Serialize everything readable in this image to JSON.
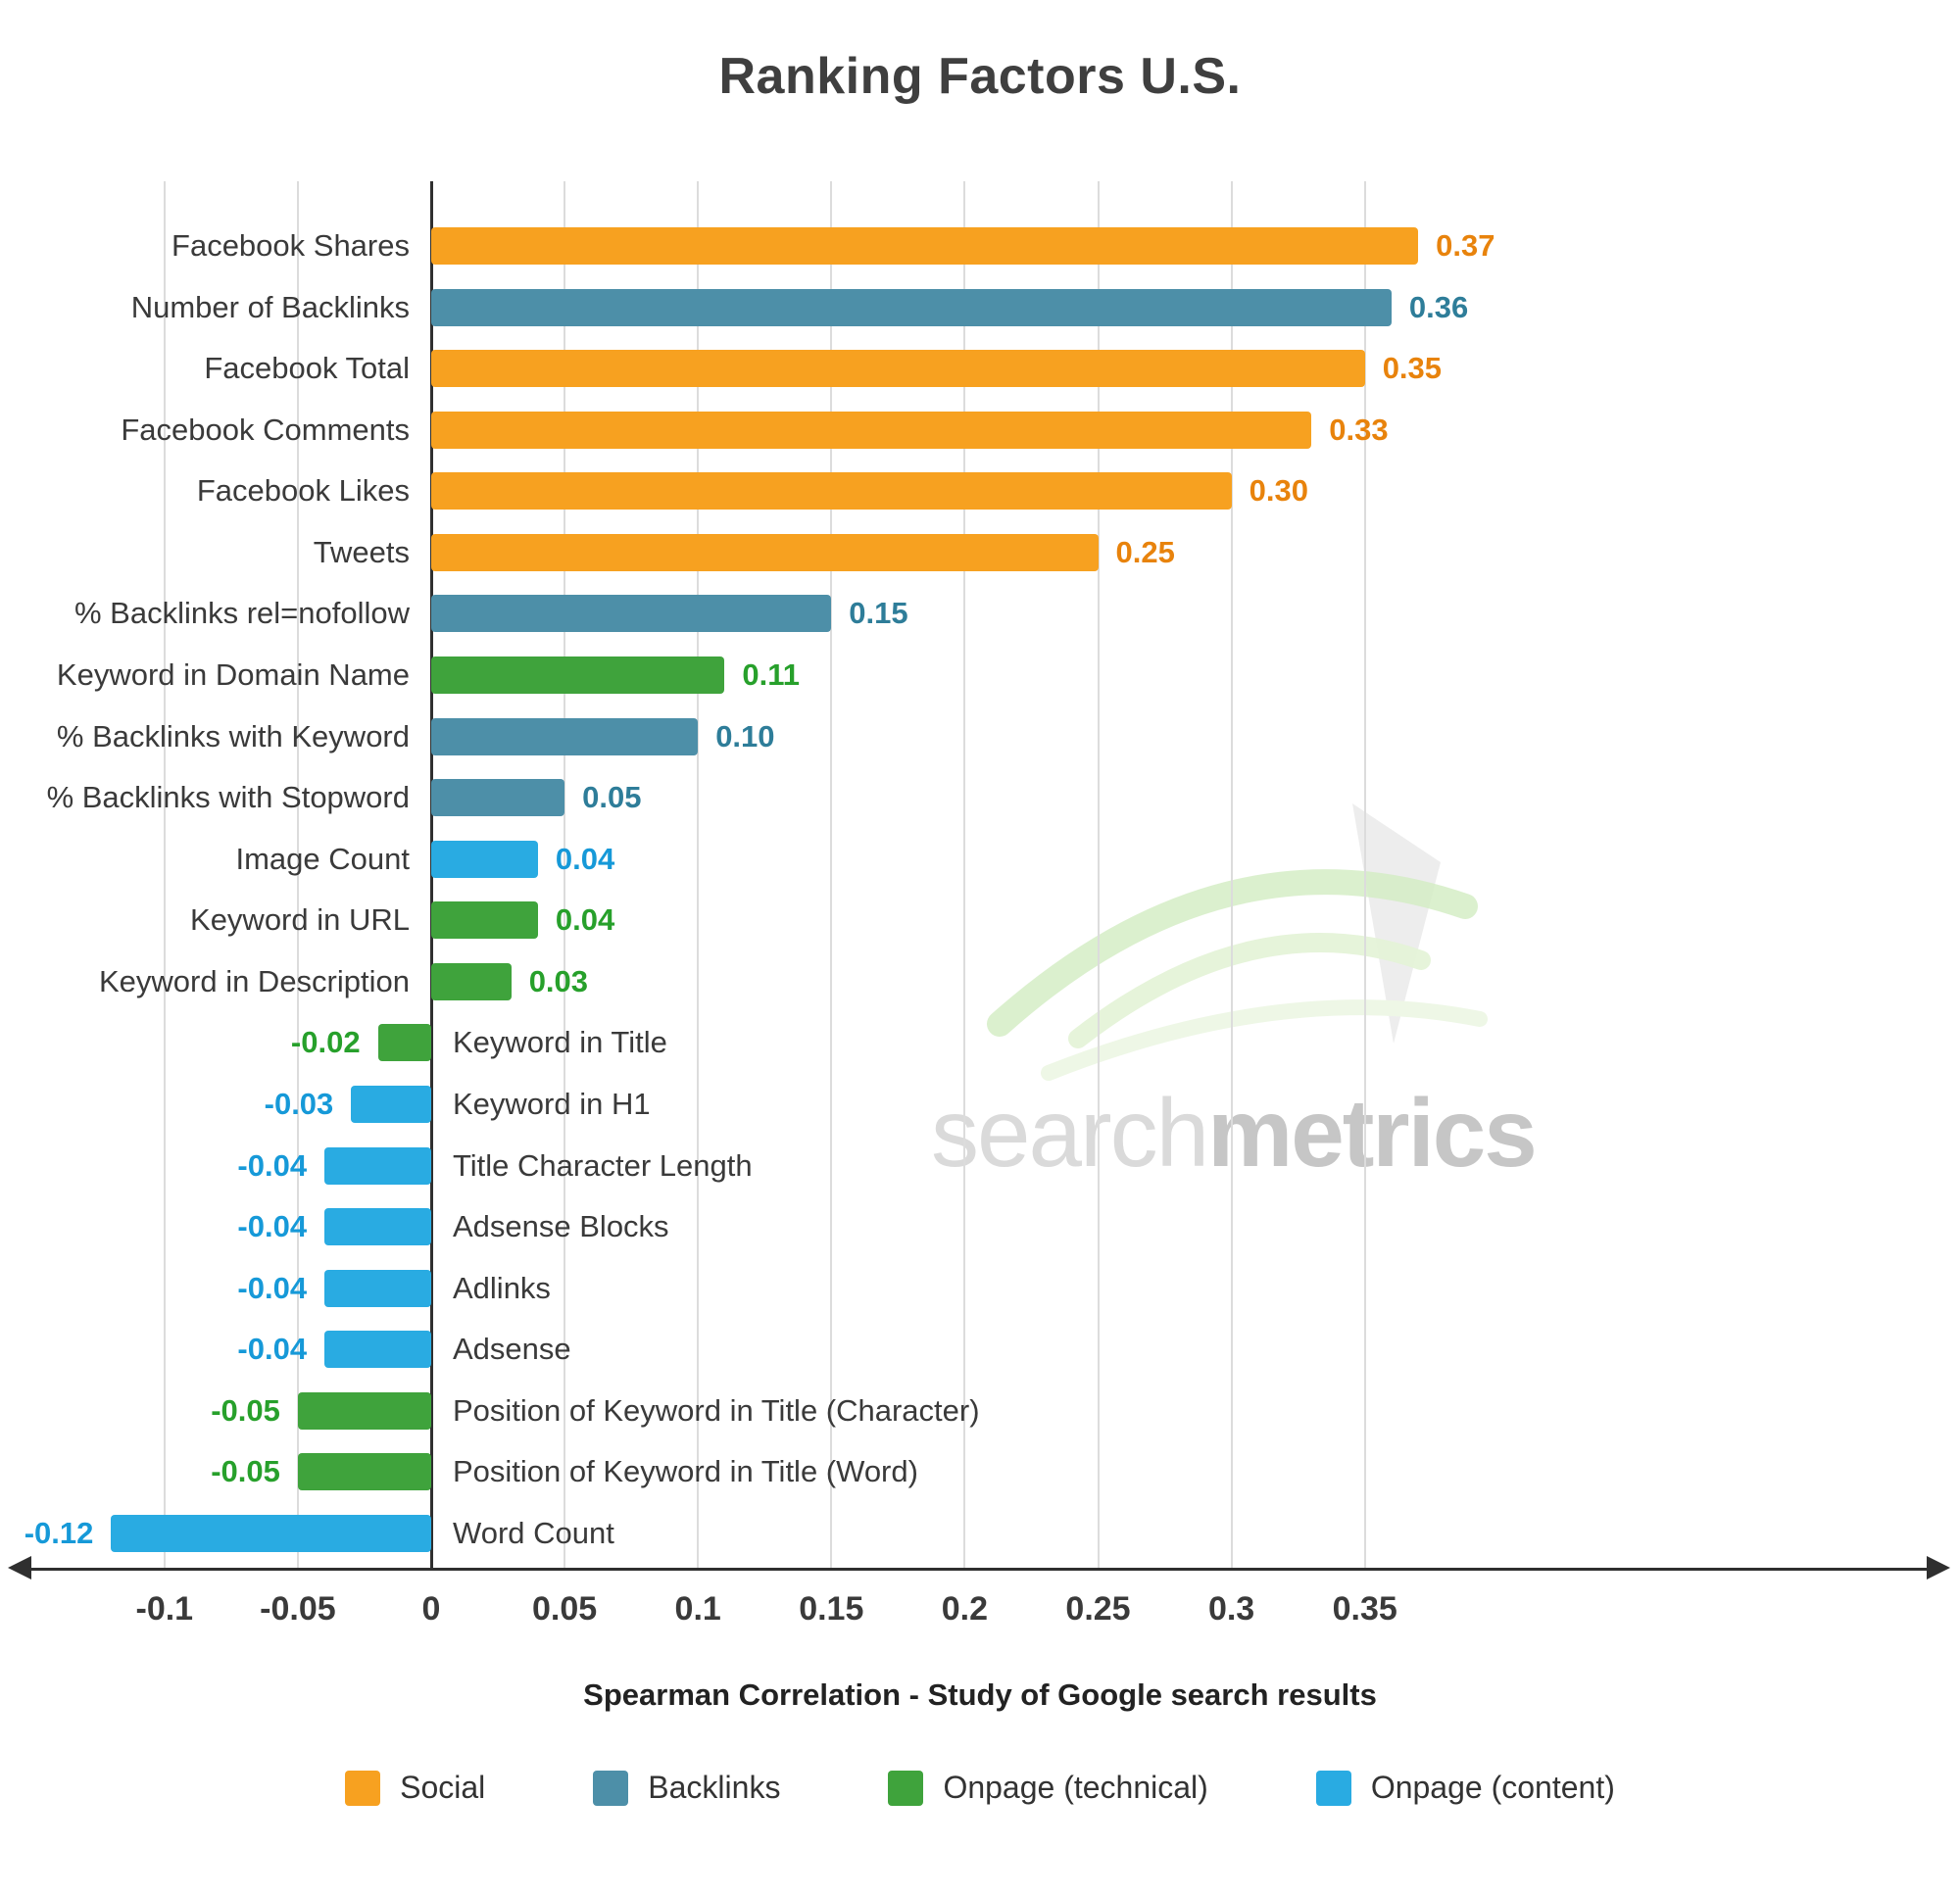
{
  "title": "Ranking Factors U.S.",
  "xlabel": "Spearman Correlation - Study of Google search results",
  "watermark": {
    "part1": "search",
    "part2": "metrics"
  },
  "colors": {
    "social": "#F7A120",
    "backlinks": "#4D8FA8",
    "onpage_technical": "#3FA33C",
    "onpage_content": "#29ABE2",
    "social_text": "#E8830C",
    "backlinks_text": "#2E7D99",
    "onpage_technical_text": "#27A02B",
    "onpage_content_text": "#1699D8",
    "grid": "#DCDCDC",
    "axis": "#2F2F2F"
  },
  "chart_data": {
    "type": "bar",
    "orientation": "horizontal",
    "title": "Ranking Factors U.S.",
    "xlabel": "Spearman Correlation - Study of Google search results",
    "xlim": [
      -0.15,
      0.4
    ],
    "grid": true,
    "legend_position": "bottom",
    "ticks": [
      {
        "v": -0.1,
        "label": "-0.1"
      },
      {
        "v": -0.05,
        "label": "-0.05"
      },
      {
        "v": 0,
        "label": "0"
      },
      {
        "v": 0.05,
        "label": "0.05"
      },
      {
        "v": 0.1,
        "label": "0.1"
      },
      {
        "v": 0.15,
        "label": "0.15"
      },
      {
        "v": 0.2,
        "label": "0.2"
      },
      {
        "v": 0.25,
        "label": "0.25"
      },
      {
        "v": 0.3,
        "label": "0.3"
      },
      {
        "v": 0.35,
        "label": "0.35"
      }
    ],
    "legend": [
      {
        "label": "Social",
        "category": "social"
      },
      {
        "label": "Backlinks",
        "category": "backlinks"
      },
      {
        "label": "Onpage (technical)",
        "category": "onpage_technical"
      },
      {
        "label": "Onpage (content)",
        "category": "onpage_content"
      }
    ],
    "bars": [
      {
        "label": "Facebook Shares",
        "value": 0.37,
        "display": "0.37",
        "category": "social"
      },
      {
        "label": "Number of Backlinks",
        "value": 0.36,
        "display": "0.36",
        "category": "backlinks"
      },
      {
        "label": "Facebook Total",
        "value": 0.35,
        "display": "0.35",
        "category": "social"
      },
      {
        "label": "Facebook Comments",
        "value": 0.33,
        "display": "0.33",
        "category": "social"
      },
      {
        "label": "Facebook Likes",
        "value": 0.3,
        "display": "0.30",
        "category": "social"
      },
      {
        "label": "Tweets",
        "value": 0.25,
        "display": "0.25",
        "category": "social"
      },
      {
        "label": "% Backlinks rel=nofollow",
        "value": 0.15,
        "display": "0.15",
        "category": "backlinks"
      },
      {
        "label": "Keyword in Domain Name",
        "value": 0.11,
        "display": "0.11",
        "category": "onpage_technical"
      },
      {
        "label": "% Backlinks with Keyword",
        "value": 0.1,
        "display": "0.10",
        "category": "backlinks"
      },
      {
        "label": "% Backlinks with Stopword",
        "value": 0.05,
        "display": "0.05",
        "category": "backlinks"
      },
      {
        "label": "Image Count",
        "value": 0.04,
        "display": "0.04",
        "category": "onpage_content"
      },
      {
        "label": "Keyword in URL",
        "value": 0.04,
        "display": "0.04",
        "category": "onpage_technical"
      },
      {
        "label": "Keyword in Description",
        "value": 0.03,
        "display": "0.03",
        "category": "onpage_technical"
      },
      {
        "label": "Keyword in Title",
        "value": -0.02,
        "display": "-0.02",
        "category": "onpage_technical"
      },
      {
        "label": "Keyword in H1",
        "value": -0.03,
        "display": "-0.03",
        "category": "onpage_content"
      },
      {
        "label": "Title Character Length",
        "value": -0.04,
        "display": "-0.04",
        "category": "onpage_content"
      },
      {
        "label": "Adsense Blocks",
        "value": -0.04,
        "display": "-0.04",
        "category": "onpage_content"
      },
      {
        "label": "Adlinks",
        "value": -0.04,
        "display": "-0.04",
        "category": "onpage_content"
      },
      {
        "label": "Adsense",
        "value": -0.04,
        "display": "-0.04",
        "category": "onpage_content"
      },
      {
        "label": "Position of Keyword in Title (Character)",
        "value": -0.05,
        "display": "-0.05",
        "category": "onpage_technical"
      },
      {
        "label": "Position of Keyword in Title (Word)",
        "value": -0.05,
        "display": "-0.05",
        "category": "onpage_technical"
      },
      {
        "label": "Word Count",
        "value": -0.12,
        "display": "-0.12",
        "category": "onpage_content"
      }
    ]
  }
}
